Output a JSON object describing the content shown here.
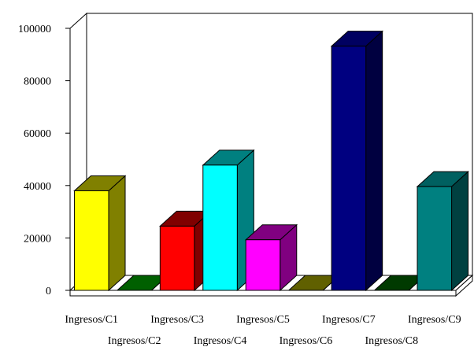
{
  "chart_data": {
    "type": "bar",
    "categories": [
      "Ingresos/C1",
      "Ingresos/C2",
      "Ingresos/C3",
      "Ingresos/C4",
      "Ingresos/C5",
      "Ingresos/C6",
      "Ingresos/C7",
      "Ingresos/C8",
      "Ingresos/C9"
    ],
    "values": [
      38000,
      0,
      24500,
      47800,
      19300,
      0,
      93200,
      0,
      39600
    ],
    "yticks": [
      "0",
      "20000",
      "40000",
      "60000",
      "80000",
      "100000"
    ],
    "ylim": [
      0,
      100000
    ],
    "three_d": true,
    "grid": false,
    "legend": "none",
    "colors": {
      "front": [
        "#ffff00",
        "#008000",
        "#ff0000",
        "#00ffff",
        "#ff00ff",
        "#808000",
        "#000080",
        "#004d00",
        "#008080"
      ],
      "side": [
        "#808000",
        "#004000",
        "#800000",
        "#008080",
        "#800080",
        "#404000",
        "#000040",
        "#002600",
        "#004040"
      ],
      "top": [
        "#808000",
        "#006000",
        "#800000",
        "#008080",
        "#800080",
        "#606000",
        "#000060",
        "#003a00",
        "#006060"
      ]
    }
  }
}
